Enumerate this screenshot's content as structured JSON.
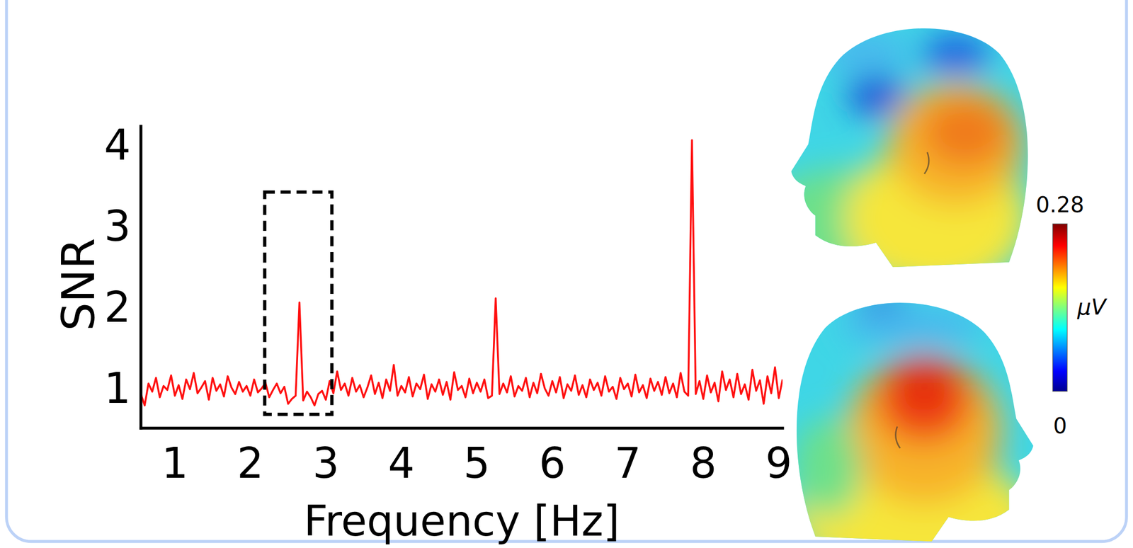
{
  "chart_data": {
    "type": "line",
    "x_label": "Frequency [Hz]",
    "y_label": "SNR",
    "color": "#ff1010",
    "xlim": [
      0.55,
      9.05
    ],
    "xticks": [
      1,
      2,
      3,
      4,
      5,
      6,
      7,
      8,
      9
    ],
    "ylim": [
      0.5,
      4.22
    ],
    "yticks": [
      1,
      2,
      3,
      4
    ],
    "grid": false,
    "x": [
      0.55,
      0.6,
      0.65,
      0.7,
      0.75,
      0.8,
      0.85,
      0.9,
      0.95,
      1.0,
      1.05,
      1.1,
      1.15,
      1.2,
      1.25,
      1.3,
      1.35,
      1.4,
      1.45,
      1.5,
      1.55,
      1.6,
      1.65,
      1.7,
      1.75,
      1.8,
      1.85,
      1.9,
      1.95,
      2.0,
      2.05,
      2.1,
      2.15,
      2.2,
      2.25,
      2.3,
      2.35,
      2.4,
      2.45,
      2.5,
      2.55,
      2.6,
      2.65,
      2.7,
      2.75,
      2.8,
      2.85,
      2.9,
      2.95,
      3.0,
      3.05,
      3.1,
      3.15,
      3.2,
      3.25,
      3.3,
      3.35,
      3.4,
      3.45,
      3.5,
      3.55,
      3.6,
      3.65,
      3.7,
      3.75,
      3.8,
      3.85,
      3.9,
      3.95,
      4.0,
      4.05,
      4.1,
      4.15,
      4.2,
      4.25,
      4.3,
      4.35,
      4.4,
      4.45,
      4.5,
      4.55,
      4.6,
      4.65,
      4.7,
      4.75,
      4.8,
      4.85,
      4.9,
      4.95,
      5.0,
      5.05,
      5.1,
      5.15,
      5.2,
      5.25,
      5.3,
      5.35,
      5.4,
      5.45,
      5.5,
      5.55,
      5.6,
      5.65,
      5.7,
      5.75,
      5.8,
      5.85,
      5.9,
      5.95,
      6.0,
      6.05,
      6.1,
      6.15,
      6.2,
      6.25,
      6.3,
      6.35,
      6.4,
      6.45,
      6.5,
      6.55,
      6.6,
      6.65,
      6.7,
      6.75,
      6.8,
      6.85,
      6.9,
      6.95,
      7.0,
      7.05,
      7.1,
      7.15,
      7.2,
      7.25,
      7.3,
      7.35,
      7.4,
      7.45,
      7.5,
      7.55,
      7.6,
      7.65,
      7.7,
      7.75,
      7.8,
      7.85,
      7.9,
      7.95,
      8.0,
      8.05,
      8.1,
      8.15,
      8.2,
      8.25,
      8.3,
      8.35,
      8.4,
      8.45,
      8.5,
      8.55,
      8.6,
      8.65,
      8.7,
      8.75,
      8.8,
      8.85,
      8.9,
      8.95,
      9.0,
      9.05
    ],
    "values": [
      0.92,
      0.78,
      1.05,
      0.95,
      1.12,
      0.88,
      1.02,
      0.97,
      1.15,
      0.9,
      1.03,
      0.86,
      1.1,
      0.98,
      1.18,
      0.93,
      1.0,
      1.08,
      0.85,
      1.12,
      0.96,
      1.04,
      0.89,
      1.14,
      1.0,
      0.92,
      1.07,
      0.95,
      1.02,
      0.9,
      1.1,
      0.94,
      0.99,
      1.06,
      0.88,
      0.97,
      1.05,
      0.93,
      1.01,
      0.8,
      0.86,
      0.9,
      2.05,
      0.84,
      0.95,
      0.88,
      0.78,
      0.92,
      0.96,
      0.85,
      1.08,
      0.93,
      1.2,
      0.97,
      1.05,
      0.9,
      1.12,
      0.95,
      1.03,
      0.88,
      1.0,
      1.15,
      0.92,
      1.06,
      0.87,
      1.1,
      0.96,
      1.28,
      0.9,
      1.02,
      0.94,
      1.13,
      0.89,
      1.05,
      0.98,
      1.16,
      0.86,
      1.04,
      0.95,
      1.1,
      0.91,
      1.07,
      0.85,
      1.19,
      0.97,
      1.02,
      0.88,
      1.11,
      0.93,
      1.06,
      0.95,
      1.1,
      0.87,
      0.9,
      2.1,
      0.92,
      1.05,
      0.94,
      1.14,
      0.89,
      1.02,
      0.96,
      1.12,
      0.88,
      1.06,
      0.93,
      1.17,
      0.99,
      0.9,
      1.08,
      0.94,
      1.13,
      0.87,
      1.04,
      0.96,
      1.15,
      0.91,
      1.03,
      0.88,
      1.1,
      0.97,
      1.06,
      0.9,
      1.14,
      0.95,
      1.01,
      0.86,
      1.12,
      0.98,
      1.05,
      0.89,
      1.16,
      0.94,
      1.03,
      0.87,
      1.11,
      0.96,
      1.07,
      0.91,
      1.13,
      0.93,
      1.05,
      0.88,
      1.18,
      0.95,
      0.9,
      4.05,
      0.92,
      1.08,
      0.86,
      1.15,
      0.94,
      1.06,
      0.83,
      1.2,
      0.97,
      1.1,
      0.88,
      1.17,
      0.92,
      1.04,
      0.85,
      1.22,
      0.96,
      1.09,
      0.8,
      1.14,
      0.93,
      1.25,
      0.87,
      1.1
    ],
    "highlight_box": {
      "x": [
        2.19,
        3.08
      ],
      "y": [
        0.67,
        3.41
      ]
    },
    "colorbar": {
      "range": [
        0,
        0.28
      ],
      "ticks": [
        0,
        0.28
      ],
      "label": "μV"
    }
  }
}
